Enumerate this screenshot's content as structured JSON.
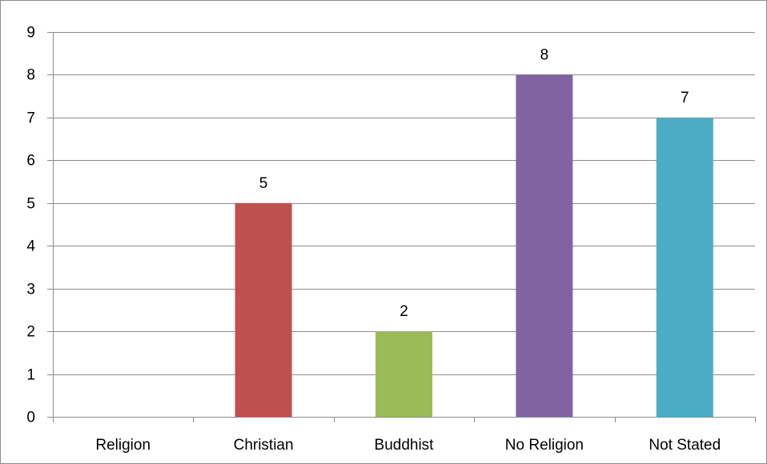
{
  "chart_data": {
    "type": "bar",
    "title": "",
    "xlabel": "",
    "ylabel": "",
    "categories": [
      "Religion",
      "Christian",
      "Buddhist",
      "No Religion",
      "Not Stated"
    ],
    "values": [
      0,
      5,
      2,
      8,
      7
    ],
    "data_labels": [
      "",
      "5",
      "2",
      "8",
      "7"
    ],
    "colors": [
      "#4f81bd",
      "#c0504d",
      "#9bbb59",
      "#8064a2",
      "#4bacc6"
    ],
    "ylim": [
      0,
      9
    ],
    "yticks": [
      0,
      1,
      2,
      3,
      4,
      5,
      6,
      7,
      8,
      9
    ],
    "grid": true,
    "legend": "none",
    "gridline_color": "#8c8c8c",
    "axis_color": "#8c8c8c"
  }
}
